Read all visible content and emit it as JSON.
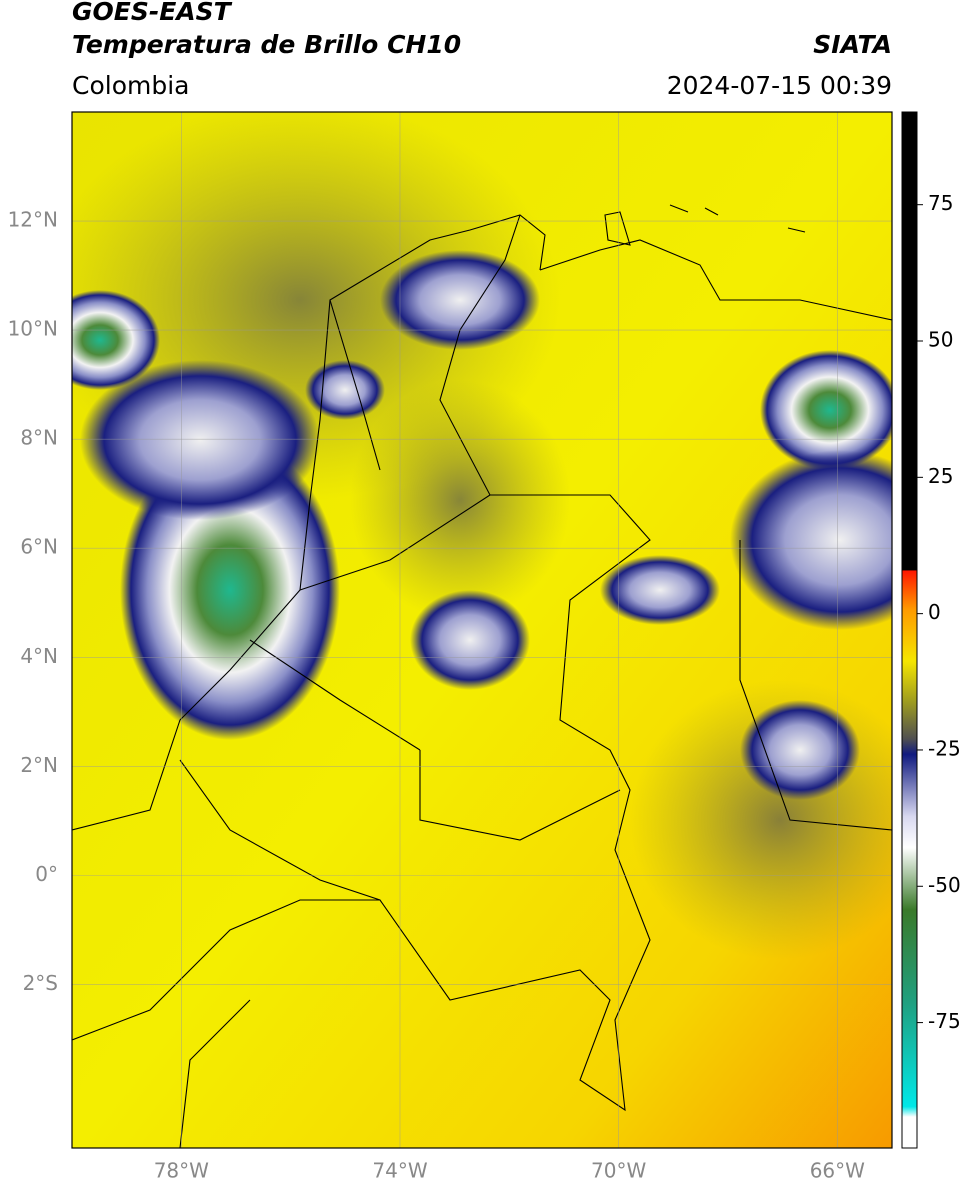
{
  "header": {
    "title": "GOES-EAST",
    "subtitle": "Temperatura de Brillo CH10",
    "source": "SIATA",
    "region": "Colombia",
    "timestamp": "2024-07-15 00:39"
  },
  "map": {
    "xlim": [
      -80,
      -65
    ],
    "ylim": [
      -5,
      14
    ],
    "xticks": [
      {
        "value": -78,
        "label": "78°W"
      },
      {
        "value": -74,
        "label": "74°W"
      },
      {
        "value": -70,
        "label": "70°W"
      },
      {
        "value": -66,
        "label": "66°W"
      }
    ],
    "yticks": [
      {
        "value": 12,
        "label": "12°N"
      },
      {
        "value": 10,
        "label": "10°N"
      },
      {
        "value": 8,
        "label": "8°N"
      },
      {
        "value": 6,
        "label": "6°N"
      },
      {
        "value": 4,
        "label": "4°N"
      },
      {
        "value": 2,
        "label": "2°N"
      },
      {
        "value": 0,
        "label": "0°"
      },
      {
        "value": -2,
        "label": "2°S"
      }
    ],
    "grid": true
  },
  "colorbar": {
    "clim": [
      -98,
      92
    ],
    "ticks": [
      75,
      50,
      25,
      0,
      -25,
      -50,
      -75
    ]
  }
}
